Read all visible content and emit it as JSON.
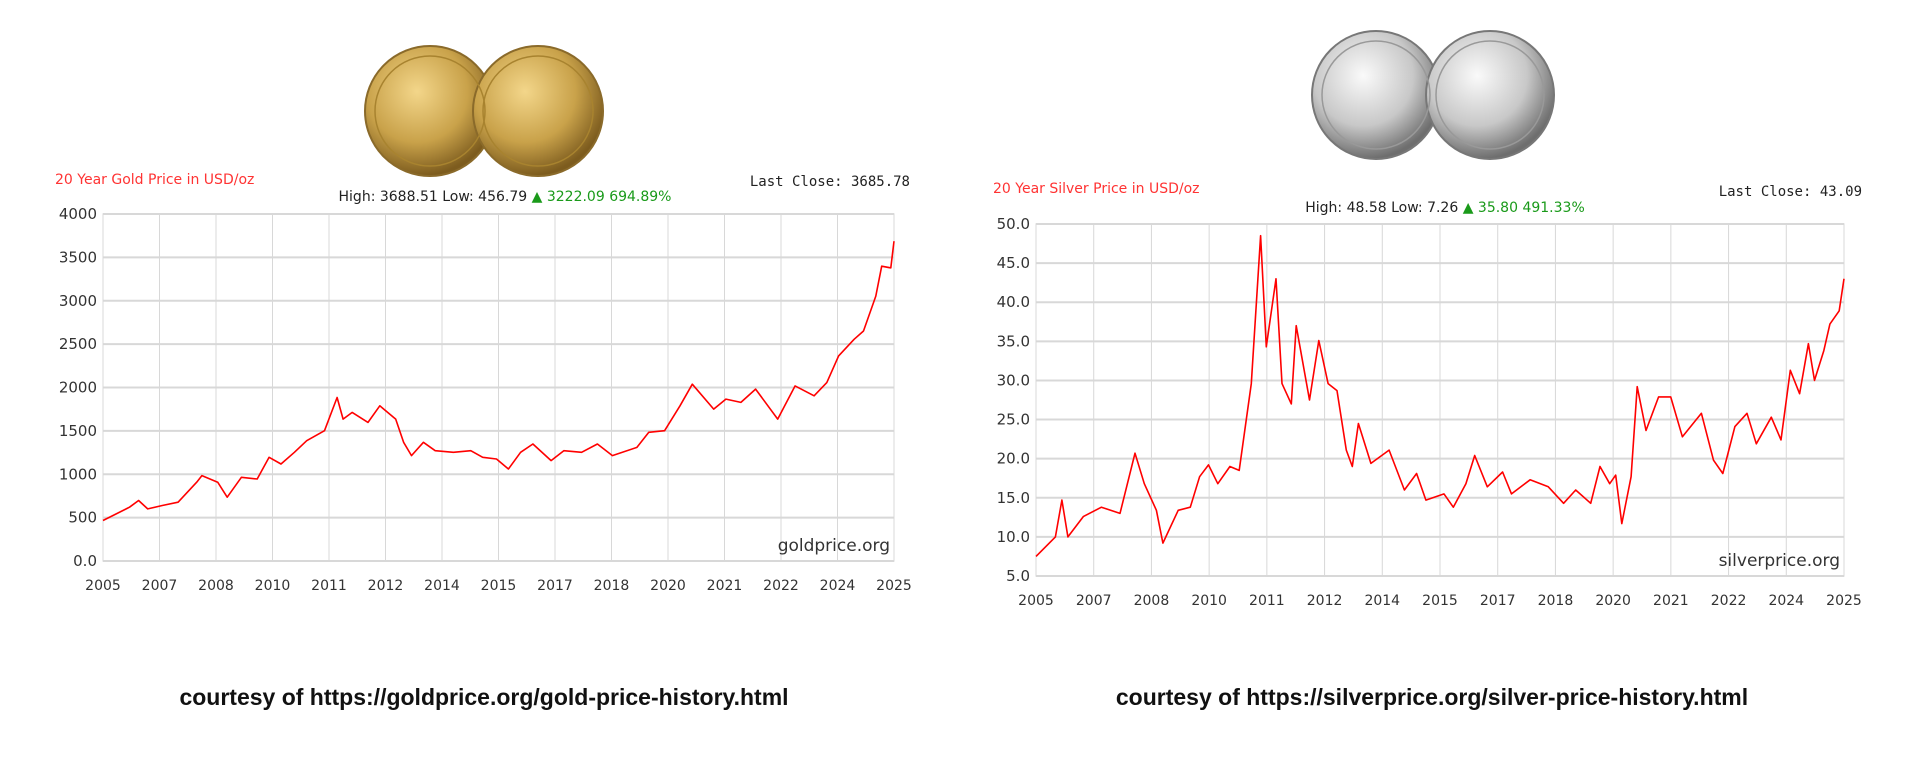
{
  "colors": {
    "line": "#ff0000",
    "title": "#ff3333",
    "up": "#1a9a1a",
    "grid": "#d8d8d8",
    "gold_coin": "#c9a24a",
    "silver_coin": "#c8c8c8"
  },
  "gold": {
    "courtesy": "courtesy of https://goldprice.org/gold-price-history.html",
    "coin_icon": "gold-eagle-coins-icon"
  },
  "silver": {
    "courtesy": "courtesy of https://silverprice.org/silver-price-history.html",
    "coin_icon": "silver-eagle-coins-icon"
  },
  "chart_data": [
    {
      "type": "line",
      "title": "20 Year Gold Price in USD/oz",
      "last_close": "Last Close: 3685.78",
      "stats": "High: 3688.51 Low: 456.79",
      "change": "3222.09 694.89%",
      "watermark": "goldprice.org",
      "xlim": [
        2005,
        2025
      ],
      "ylim": [
        0,
        4000
      ],
      "grid": true,
      "xticks": [
        "2005",
        "2007",
        "2008",
        "2010",
        "2011",
        "2012",
        "2014",
        "2015",
        "2017",
        "2018",
        "2020",
        "2021",
        "2022",
        "2024",
        "2025"
      ],
      "yticks": [
        "0.0",
        "500",
        "1000",
        "1500",
        "2000",
        "2500",
        "3000",
        "3500",
        "4000"
      ],
      "ytick_values": [
        0,
        500,
        1000,
        1500,
        2000,
        2500,
        3000,
        3500,
        4000
      ],
      "x": [
        2005.0,
        2005.67,
        2005.9,
        2006.13,
        2006.5,
        2006.9,
        2007.37,
        2007.5,
        2007.9,
        2008.14,
        2008.5,
        2008.9,
        2009.2,
        2009.5,
        2009.84,
        2010.15,
        2010.6,
        2010.92,
        2011.07,
        2011.3,
        2011.7,
        2012.0,
        2012.4,
        2012.6,
        2012.8,
        2013.1,
        2013.4,
        2013.86,
        2014.3,
        2014.6,
        2014.95,
        2015.25,
        2015.56,
        2015.87,
        2016.33,
        2016.65,
        2017.1,
        2017.5,
        2017.88,
        2018.5,
        2018.8,
        2019.2,
        2019.59,
        2019.9,
        2020.44,
        2020.75,
        2021.13,
        2021.5,
        2022.06,
        2022.5,
        2022.98,
        2023.3,
        2023.6,
        2023.99,
        2024.23,
        2024.54,
        2024.69,
        2024.92,
        2025.0
      ],
      "y": [
        467,
        620,
        697,
        600,
        640,
        678,
        908,
        985,
        908,
        735,
        965,
        945,
        1195,
        1118,
        1253,
        1387,
        1502,
        1885,
        1636,
        1713,
        1598,
        1789,
        1636,
        1368,
        1215,
        1368,
        1272,
        1253,
        1272,
        1195,
        1176,
        1061,
        1253,
        1349,
        1157,
        1272,
        1253,
        1349,
        1215,
        1310,
        1483,
        1502,
        1789,
        2038,
        1751,
        1866,
        1828,
        1981,
        1636,
        2019,
        1904,
        2057,
        2364,
        2556,
        2651,
        3054,
        3398,
        3379,
        3686
      ]
    },
    {
      "type": "line",
      "title": "20 Year Silver Price in USD/oz",
      "last_close": "Last Close: 43.09",
      "stats": "High: 48.58 Low: 7.26",
      "change": "35.80 491.33%",
      "watermark": "silverprice.org",
      "xlim": [
        2005,
        2025
      ],
      "ylim": [
        5,
        50
      ],
      "grid": true,
      "xticks": [
        "2005",
        "2007",
        "2008",
        "2010",
        "2011",
        "2012",
        "2014",
        "2015",
        "2017",
        "2018",
        "2020",
        "2021",
        "2022",
        "2024",
        "2025"
      ],
      "yticks": [
        "5.0",
        "10.0",
        "15.0",
        "20.0",
        "25.0",
        "30.0",
        "35.0",
        "40.0",
        "45.0",
        "50.0"
      ],
      "ytick_values": [
        5,
        10,
        15,
        20,
        25,
        30,
        35,
        40,
        45,
        50
      ],
      "x": [
        2005.0,
        2005.48,
        2005.64,
        2005.79,
        2006.17,
        2006.62,
        2007.08,
        2007.45,
        2007.68,
        2007.98,
        2008.14,
        2008.52,
        2008.82,
        2009.05,
        2009.27,
        2009.5,
        2009.8,
        2010.03,
        2010.33,
        2010.56,
        2010.7,
        2010.94,
        2011.09,
        2011.32,
        2011.44,
        2011.77,
        2012.0,
        2012.23,
        2012.45,
        2012.68,
        2012.83,
        2012.98,
        2013.29,
        2013.74,
        2014.12,
        2014.42,
        2014.65,
        2015.1,
        2015.33,
        2015.64,
        2015.86,
        2016.17,
        2016.55,
        2016.77,
        2017.23,
        2017.68,
        2018.06,
        2018.36,
        2018.73,
        2018.96,
        2019.2,
        2019.35,
        2019.5,
        2019.73,
        2019.88,
        2020.1,
        2020.41,
        2020.71,
        2021.0,
        2021.47,
        2021.77,
        2022.0,
        2022.3,
        2022.6,
        2022.83,
        2023.2,
        2023.44,
        2023.67,
        2023.9,
        2024.12,
        2024.27,
        2024.5,
        2024.65,
        2024.88,
        2025.0
      ],
      "y": [
        7.5,
        10.0,
        14.7,
        10.0,
        12.6,
        13.8,
        13.0,
        20.7,
        16.8,
        13.4,
        9.2,
        13.4,
        13.8,
        17.7,
        19.2,
        16.8,
        19.0,
        18.5,
        29.6,
        48.5,
        34.3,
        43.0,
        29.6,
        27.0,
        37.0,
        27.5,
        35.1,
        29.6,
        28.7,
        21.1,
        19.0,
        24.5,
        19.4,
        21.1,
        16.0,
        18.1,
        14.7,
        15.5,
        13.8,
        16.8,
        20.4,
        16.4,
        18.3,
        15.5,
        17.3,
        16.4,
        14.3,
        16.0,
        14.3,
        19.0,
        16.8,
        17.9,
        11.7,
        17.7,
        29.2,
        23.6,
        27.9,
        27.9,
        22.8,
        25.8,
        19.8,
        18.1,
        24.1,
        25.8,
        21.9,
        25.3,
        22.4,
        31.3,
        28.3,
        34.7,
        30.0,
        33.8,
        37.2,
        38.9,
        43.0
      ]
    }
  ]
}
